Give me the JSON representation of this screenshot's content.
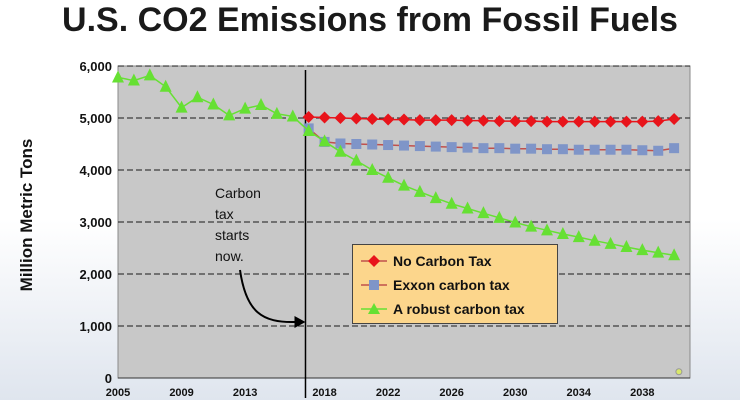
{
  "colors": {
    "plot_background": "#c8c8c8",
    "no_tax": "#e8141b",
    "exxon": "#7f95c8",
    "exxon_line": "#c0504d",
    "robust": "#66e033",
    "legend_background": "#fcd68c"
  },
  "chart_data": {
    "type": "line",
    "title": "U.S. CO2 Emissions from Fossil Fuels",
    "ylabel": "Million Metric Tons",
    "xlabel": "",
    "xlim": [
      2005,
      2041
    ],
    "ylim": [
      0,
      6000
    ],
    "yticks": [
      0,
      1000,
      2000,
      3000,
      4000,
      5000,
      6000
    ],
    "ytick_labels": [
      "0",
      "1,000",
      "2,000",
      "3,000",
      "4,000",
      "5,000",
      "6,000"
    ],
    "xticks": [
      2005,
      2009,
      2013,
      2018,
      2022,
      2026,
      2030,
      2034,
      2038
    ],
    "xtick_labels": [
      "2005",
      "2009",
      "2013",
      "2018",
      "2022",
      "2026",
      "2030",
      "2034",
      "2038"
    ],
    "grid": "horizontal dashed",
    "legend_position": "lower center-right",
    "vline": {
      "x": 2016.8
    },
    "annotation": [
      "Carbon",
      "tax",
      "starts",
      "now."
    ],
    "series": [
      {
        "name": "No Carbon Tax",
        "marker": "diamond",
        "x": [
          2017,
          2018,
          2019,
          2020,
          2021,
          2022,
          2023,
          2024,
          2025,
          2026,
          2027,
          2028,
          2029,
          2030,
          2031,
          2032,
          2033,
          2034,
          2035,
          2036,
          2037,
          2038,
          2039,
          2040
        ],
        "values": [
          5020,
          5010,
          5000,
          4990,
          4980,
          4970,
          4970,
          4960,
          4960,
          4960,
          4950,
          4950,
          4940,
          4940,
          4940,
          4930,
          4930,
          4930,
          4930,
          4930,
          4930,
          4930,
          4940,
          4980
        ]
      },
      {
        "name": "Exxon carbon tax",
        "marker": "square",
        "x": [
          2017,
          2018,
          2019,
          2020,
          2021,
          2022,
          2023,
          2024,
          2025,
          2026,
          2027,
          2028,
          2029,
          2030,
          2031,
          2032,
          2033,
          2034,
          2035,
          2036,
          2037,
          2038,
          2039,
          2040
        ],
        "values": [
          4800,
          4540,
          4510,
          4500,
          4490,
          4480,
          4470,
          4460,
          4450,
          4440,
          4430,
          4420,
          4420,
          4410,
          4410,
          4400,
          4400,
          4390,
          4390,
          4390,
          4390,
          4380,
          4370,
          4420
        ]
      },
      {
        "name": "A robust carbon tax",
        "marker": "triangle",
        "x": [
          2005,
          2006,
          2007,
          2008,
          2009,
          2010,
          2011,
          2012,
          2013,
          2014,
          2015,
          2016,
          2017,
          2018,
          2019,
          2020,
          2021,
          2022,
          2023,
          2024,
          2025,
          2026,
          2027,
          2028,
          2029,
          2030,
          2031,
          2032,
          2033,
          2034,
          2035,
          2036,
          2037,
          2038,
          2039,
          2040
        ],
        "values": [
          5780,
          5720,
          5820,
          5600,
          5200,
          5400,
          5260,
          5050,
          5180,
          5250,
          5080,
          5030,
          4750,
          4550,
          4350,
          4180,
          4000,
          3850,
          3700,
          3580,
          3460,
          3350,
          3260,
          3170,
          3080,
          2990,
          2910,
          2840,
          2770,
          2710,
          2640,
          2580,
          2520,
          2460,
          2410,
          2360
        ]
      }
    ],
    "stray_point": {
      "x": 2040.3,
      "y": 120
    }
  }
}
